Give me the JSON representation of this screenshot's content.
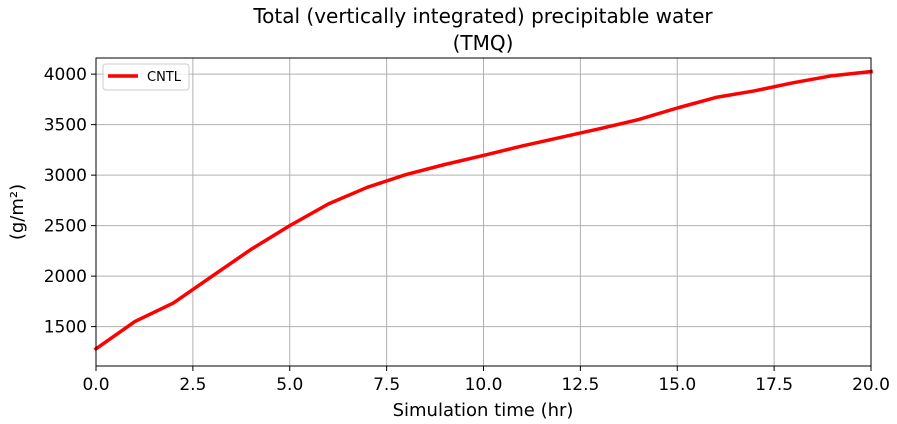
{
  "chart_data": {
    "type": "line",
    "title_line1": "Total (vertically integrated) precipitable water",
    "title_line2": "(TMQ)",
    "xlabel": "Simulation time (hr)",
    "ylabel": "(g/m²)",
    "xlim": [
      0,
      20
    ],
    "ylim": [
      1110,
      4160
    ],
    "xticks": [
      0,
      2.5,
      5,
      7.5,
      10,
      12.5,
      15,
      17.5,
      20
    ],
    "xtick_labels": [
      "0.0",
      "2.5",
      "5.0",
      "7.5",
      "10.0",
      "12.5",
      "15.0",
      "17.5",
      "20.0"
    ],
    "yticks": [
      1500,
      2000,
      2500,
      3000,
      3500,
      4000
    ],
    "ytick_labels": [
      "1500",
      "2000",
      "2500",
      "3000",
      "3500",
      "4000"
    ],
    "grid": true,
    "legend_position": "top-left",
    "series": [
      {
        "name": "CNTL",
        "color": "#ff0000",
        "x": [
          0,
          1,
          2,
          3,
          4,
          5,
          6,
          7,
          8,
          9,
          10,
          11,
          12,
          13,
          14,
          15,
          16,
          17,
          18,
          19,
          20
        ],
        "y": [
          1280,
          1550,
          1735,
          2000,
          2265,
          2500,
          2715,
          2880,
          3005,
          3105,
          3195,
          3290,
          3375,
          3460,
          3550,
          3665,
          3770,
          3835,
          3915,
          3985,
          4025
        ]
      }
    ]
  }
}
